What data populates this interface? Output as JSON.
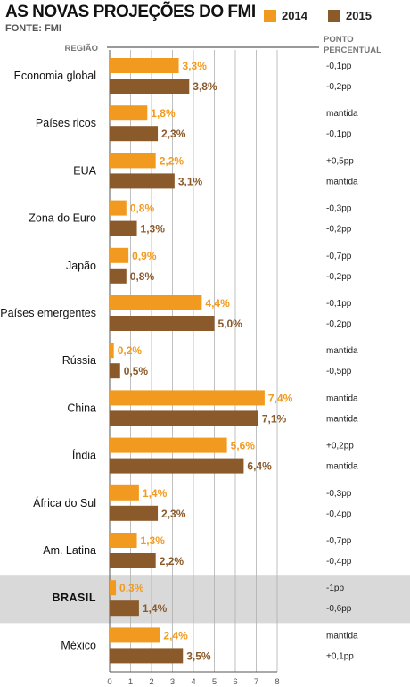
{
  "title": "AS NOVAS PROJEÇÕES DO FMI",
  "source": "FONTE: FMI",
  "colors": {
    "y2014": "#F29A1F",
    "y2015": "#8B5A2B",
    "highlight_bg": "#D9D9D9",
    "grid": "#B0B0B0"
  },
  "chart_data": {
    "type": "bar",
    "orientation": "horizontal",
    "title": "AS NOVAS PROJEÇÕES DO FMI",
    "source": "FONTE: FMI",
    "category_header": "REGIÃO",
    "change_header": [
      "PONTO",
      "PERCENTUAL"
    ],
    "xlim": [
      0,
      8
    ],
    "xticks": [
      "0",
      "1",
      "2",
      "3",
      "4",
      "5",
      "6",
      "7",
      "8"
    ],
    "grid": true,
    "legend": "top-right",
    "highlight": "BRASIL",
    "series": [
      {
        "name": "2014",
        "color": "#F29A1F"
      },
      {
        "name": "2015",
        "color": "#8B5A2B"
      }
    ],
    "categories": [
      {
        "name": "Economia global",
        "v2014": 3.3,
        "l2014": "3,3%",
        "c2014": "-0,1pp",
        "v2015": 3.8,
        "l2015": "3,8%",
        "c2015": "-0,2pp"
      },
      {
        "name": "Países ricos",
        "v2014": 1.8,
        "l2014": "1,8%",
        "c2014": "mantida",
        "v2015": 2.3,
        "l2015": "2,3%",
        "c2015": "-0,1pp"
      },
      {
        "name": "EUA",
        "v2014": 2.2,
        "l2014": "2,2%",
        "c2014": "+0,5pp",
        "v2015": 3.1,
        "l2015": "3,1%",
        "c2015": "mantida"
      },
      {
        "name": "Zona do Euro",
        "v2014": 0.8,
        "l2014": "0,8%",
        "c2014": "-0,3pp",
        "v2015": 1.3,
        "l2015": "1,3%",
        "c2015": "-0,2pp"
      },
      {
        "name": "Japão",
        "v2014": 0.9,
        "l2014": "0,9%",
        "c2014": "-0,7pp",
        "v2015": 0.8,
        "l2015": "0,8%",
        "c2015": "-0,2pp"
      },
      {
        "name": "Países emergentes",
        "v2014": 4.4,
        "l2014": "4,4%",
        "c2014": "-0,1pp",
        "v2015": 5.0,
        "l2015": "5,0%",
        "c2015": "-0,2pp"
      },
      {
        "name": "Rússia",
        "v2014": 0.2,
        "l2014": "0,2%",
        "c2014": "mantida",
        "v2015": 0.5,
        "l2015": "0,5%",
        "c2015": "-0,5pp"
      },
      {
        "name": "China",
        "v2014": 7.4,
        "l2014": "7,4%",
        "c2014": "mantida",
        "v2015": 7.1,
        "l2015": "7,1%",
        "c2015": "mantida"
      },
      {
        "name": "Índia",
        "v2014": 5.6,
        "l2014": "5,6%",
        "c2014": "+0,2pp",
        "v2015": 6.4,
        "l2015": "6,4%",
        "c2015": "mantida"
      },
      {
        "name": "África do Sul",
        "v2014": 1.4,
        "l2014": "1,4%",
        "c2014": "-0,3pp",
        "v2015": 2.3,
        "l2015": "2,3%",
        "c2015": "-0,4pp"
      },
      {
        "name": "Am. Latina",
        "v2014": 1.3,
        "l2014": "1,3%",
        "c2014": "-0,7pp",
        "v2015": 2.2,
        "l2015": "2,2%",
        "c2015": "-0,4pp"
      },
      {
        "name": "BRASIL",
        "v2014": 0.3,
        "l2014": "0,3%",
        "c2014": "-1pp",
        "v2015": 1.4,
        "l2015": "1,4%",
        "c2015": "-0,6pp"
      },
      {
        "name": "México",
        "v2014": 2.4,
        "l2014": "2,4%",
        "c2014": "mantida",
        "v2015": 3.5,
        "l2015": "3,5%",
        "c2015": "+0,1pp"
      }
    ]
  }
}
